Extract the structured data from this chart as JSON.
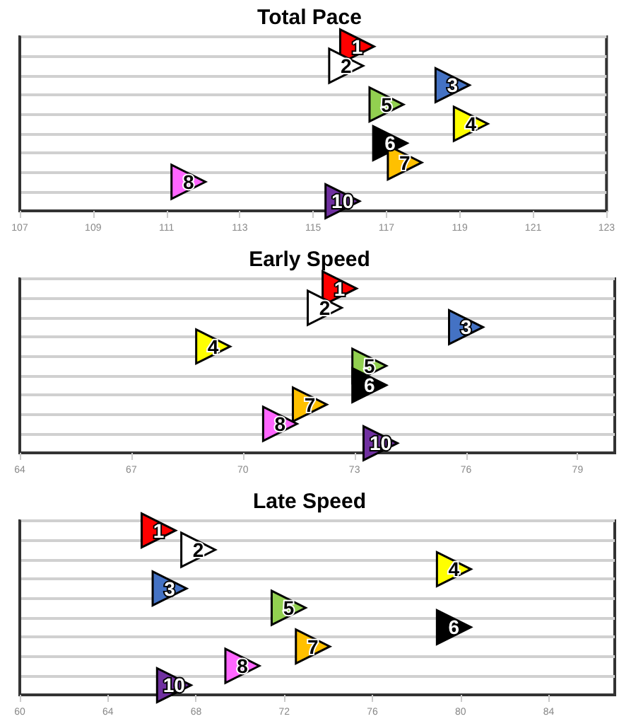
{
  "chart_data": [
    {
      "type": "scatter",
      "title": "Total Pace",
      "orientation": "horizontal",
      "marker": "triangle",
      "grid": "y",
      "tick_labels": "x",
      "xlim": [
        107,
        123
      ],
      "xticks": [
        107,
        109,
        111,
        113,
        115,
        117,
        119,
        121,
        123
      ],
      "categories": [
        null,
        null,
        null,
        null,
        null,
        null,
        null,
        null,
        null
      ],
      "series": [
        {
          "name": "1",
          "color": "#ff0000",
          "values": [
            116.2,
            null,
            null,
            null,
            null,
            null,
            null,
            null,
            null
          ]
        },
        {
          "name": "2",
          "color": "#ffffff",
          "values": [
            null,
            115.9,
            null,
            null,
            null,
            null,
            null,
            null,
            null
          ]
        },
        {
          "name": "3",
          "color": "#4472c4",
          "values": [
            null,
            null,
            118.8,
            null,
            null,
            null,
            null,
            null,
            null
          ]
        },
        {
          "name": "5",
          "color": "#92d050",
          "values": [
            null,
            null,
            null,
            117.0,
            null,
            null,
            null,
            null,
            null
          ]
        },
        {
          "name": "4",
          "color": "#ffff00",
          "values": [
            null,
            null,
            null,
            null,
            119.3,
            null,
            null,
            null,
            null
          ]
        },
        {
          "name": "6",
          "color": "#000000",
          "values": [
            null,
            null,
            null,
            null,
            null,
            117.1,
            null,
            null,
            null
          ]
        },
        {
          "name": "7",
          "color": "#ffc000",
          "values": [
            null,
            null,
            null,
            null,
            null,
            null,
            117.5,
            null,
            null
          ]
        },
        {
          "name": "8",
          "color": "#ff66ff",
          "values": [
            null,
            null,
            null,
            null,
            null,
            null,
            null,
            111.6,
            null
          ]
        },
        {
          "name": "10",
          "color": "#7030a0",
          "values": [
            null,
            null,
            null,
            null,
            null,
            null,
            null,
            null,
            115.8
          ]
        }
      ]
    },
    {
      "type": "scatter",
      "title": "Early Speed",
      "orientation": "horizontal",
      "marker": "triangle",
      "grid": "y",
      "tick_labels": "x",
      "xlim": [
        64,
        80
      ],
      "xticks": [
        64,
        67,
        70,
        73,
        76,
        79
      ],
      "categories": [
        null,
        null,
        null,
        null,
        null,
        null,
        null,
        null,
        null
      ],
      "series": [
        {
          "name": "1",
          "color": "#ff0000",
          "values": [
            72.6,
            null,
            null,
            null,
            null,
            null,
            null,
            null,
            null
          ]
        },
        {
          "name": "2",
          "color": "#ffffff",
          "values": [
            null,
            72.2,
            null,
            null,
            null,
            null,
            null,
            null,
            null
          ]
        },
        {
          "name": "3",
          "color": "#4472c4",
          "values": [
            null,
            null,
            76.0,
            null,
            null,
            null,
            null,
            null,
            null
          ]
        },
        {
          "name": "4",
          "color": "#ffff00",
          "values": [
            null,
            null,
            null,
            69.2,
            null,
            null,
            null,
            null,
            null
          ]
        },
        {
          "name": "5",
          "color": "#92d050",
          "values": [
            null,
            null,
            null,
            null,
            73.4,
            null,
            null,
            null,
            null
          ]
        },
        {
          "name": "6",
          "color": "#000000",
          "values": [
            null,
            null,
            null,
            null,
            null,
            73.4,
            null,
            null,
            null
          ]
        },
        {
          "name": "7",
          "color": "#ffc000",
          "values": [
            null,
            null,
            null,
            null,
            null,
            null,
            71.8,
            null,
            null
          ]
        },
        {
          "name": "8",
          "color": "#ff66ff",
          "values": [
            null,
            null,
            null,
            null,
            null,
            null,
            null,
            71.0,
            null
          ]
        },
        {
          "name": "10",
          "color": "#7030a0",
          "values": [
            null,
            null,
            null,
            null,
            null,
            null,
            null,
            null,
            73.7
          ]
        }
      ]
    },
    {
      "type": "scatter",
      "title": "Late Speed",
      "orientation": "horizontal",
      "marker": "triangle",
      "grid": "y",
      "tick_labels": "x",
      "xlim": [
        60,
        87
      ],
      "xticks": [
        60,
        64,
        68,
        72,
        76,
        80,
        84
      ],
      "categories": [
        null,
        null,
        null,
        null,
        null,
        null,
        null,
        null,
        null
      ],
      "series": [
        {
          "name": "1",
          "color": "#ff0000",
          "values": [
            66.3,
            null,
            null,
            null,
            null,
            null,
            null,
            null,
            null
          ]
        },
        {
          "name": "2",
          "color": "#ffffff",
          "values": [
            null,
            68.1,
            null,
            null,
            null,
            null,
            null,
            null,
            null
          ]
        },
        {
          "name": "4",
          "color": "#ffff00",
          "values": [
            null,
            null,
            79.7,
            null,
            null,
            null,
            null,
            null,
            null
          ]
        },
        {
          "name": "3",
          "color": "#4472c4",
          "values": [
            null,
            null,
            null,
            66.8,
            null,
            null,
            null,
            null,
            null
          ]
        },
        {
          "name": "5",
          "color": "#92d050",
          "values": [
            null,
            null,
            null,
            null,
            72.2,
            null,
            null,
            null,
            null
          ]
        },
        {
          "name": "6",
          "color": "#000000",
          "values": [
            null,
            null,
            null,
            null,
            null,
            79.7,
            null,
            null,
            null
          ]
        },
        {
          "name": "7",
          "color": "#ffc000",
          "values": [
            null,
            null,
            null,
            null,
            null,
            null,
            73.3,
            null,
            null
          ]
        },
        {
          "name": "8",
          "color": "#ff66ff",
          "values": [
            null,
            null,
            null,
            null,
            null,
            null,
            null,
            70.1,
            null
          ]
        },
        {
          "name": "10",
          "color": "#7030a0",
          "values": [
            null,
            null,
            null,
            null,
            null,
            null,
            null,
            null,
            67.0
          ]
        }
      ]
    }
  ]
}
